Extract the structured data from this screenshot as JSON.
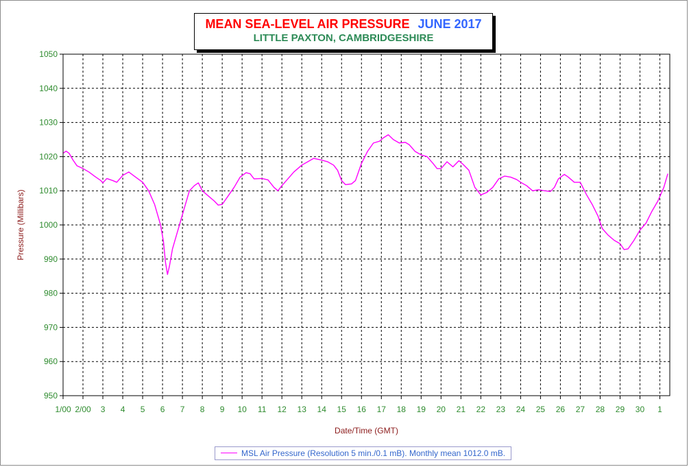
{
  "chart_data": {
    "type": "line",
    "title": "MEAN SEA-LEVEL AIR PRESSURE",
    "title_date": "JUNE 2017",
    "subtitle": "LITTLE PAXTON, CAMBRIDGESHIRE",
    "xlabel": "Date/Time (GMT)",
    "ylabel": "Pressure (Millibars)",
    "ylim": [
      950,
      1050
    ],
    "yticks": [
      950,
      960,
      970,
      980,
      990,
      1000,
      1010,
      1020,
      1030,
      1040,
      1050
    ],
    "xlim": [
      0,
      30.5
    ],
    "xticks": [
      {
        "x": 0,
        "label": "1/00"
      },
      {
        "x": 1,
        "label": "2/00"
      },
      {
        "x": 2,
        "label": "3"
      },
      {
        "x": 3,
        "label": "4"
      },
      {
        "x": 4,
        "label": "5"
      },
      {
        "x": 5,
        "label": "6"
      },
      {
        "x": 6,
        "label": "7"
      },
      {
        "x": 7,
        "label": "8"
      },
      {
        "x": 8,
        "label": "9"
      },
      {
        "x": 9,
        "label": "10"
      },
      {
        "x": 10,
        "label": "11"
      },
      {
        "x": 11,
        "label": "12"
      },
      {
        "x": 12,
        "label": "13"
      },
      {
        "x": 13,
        "label": "14"
      },
      {
        "x": 14,
        "label": "15"
      },
      {
        "x": 15,
        "label": "16"
      },
      {
        "x": 16,
        "label": "17"
      },
      {
        "x": 17,
        "label": "18"
      },
      {
        "x": 18,
        "label": "19"
      },
      {
        "x": 19,
        "label": "20"
      },
      {
        "x": 20,
        "label": "21"
      },
      {
        "x": 21,
        "label": "22"
      },
      {
        "x": 22,
        "label": "23"
      },
      {
        "x": 23,
        "label": "24"
      },
      {
        "x": 24,
        "label": "25"
      },
      {
        "x": 25,
        "label": "26"
      },
      {
        "x": 26,
        "label": "27"
      },
      {
        "x": 27,
        "label": "28"
      },
      {
        "x": 28,
        "label": "29"
      },
      {
        "x": 29,
        "label": "30"
      },
      {
        "x": 30,
        "label": "1"
      }
    ],
    "grid": true,
    "legend_position": "bottom",
    "series": [
      {
        "name": "MSL Air Pressure (Resolution 5 min./0.1 mB). Monthly mean 1012.0 mB.",
        "color": "#ff00ff",
        "points": [
          [
            0.0,
            1021.0
          ],
          [
            0.15,
            1021.6
          ],
          [
            0.3,
            1021.0
          ],
          [
            0.5,
            1019.0
          ],
          [
            0.7,
            1017.3
          ],
          [
            1.0,
            1016.5
          ],
          [
            1.3,
            1015.5
          ],
          [
            1.6,
            1014.2
          ],
          [
            1.9,
            1013.0
          ],
          [
            2.0,
            1012.3
          ],
          [
            2.2,
            1013.6
          ],
          [
            2.5,
            1013.0
          ],
          [
            2.7,
            1012.5
          ],
          [
            3.0,
            1014.5
          ],
          [
            3.3,
            1015.5
          ],
          [
            3.6,
            1014.2
          ],
          [
            4.0,
            1012.5
          ],
          [
            4.3,
            1010.0
          ],
          [
            4.6,
            1006.0
          ],
          [
            4.9,
            1000.0
          ],
          [
            5.05,
            995.0
          ],
          [
            5.15,
            989.0
          ],
          [
            5.25,
            985.5
          ],
          [
            5.35,
            988.0
          ],
          [
            5.5,
            993.0
          ],
          [
            5.7,
            997.0
          ],
          [
            5.9,
            1001.0
          ],
          [
            6.1,
            1005.0
          ],
          [
            6.35,
            1010.0
          ],
          [
            6.6,
            1011.5
          ],
          [
            6.8,
            1012.3
          ],
          [
            7.0,
            1010.0
          ],
          [
            7.3,
            1008.5
          ],
          [
            7.6,
            1007.0
          ],
          [
            7.8,
            1005.8
          ],
          [
            8.0,
            1006.0
          ],
          [
            8.3,
            1008.5
          ],
          [
            8.6,
            1011.0
          ],
          [
            8.9,
            1014.0
          ],
          [
            9.2,
            1015.3
          ],
          [
            9.4,
            1015.0
          ],
          [
            9.6,
            1013.5
          ],
          [
            10.0,
            1013.6
          ],
          [
            10.3,
            1013.2
          ],
          [
            10.6,
            1011.0
          ],
          [
            10.8,
            1010.0
          ],
          [
            11.0,
            1011.5
          ],
          [
            11.3,
            1013.5
          ],
          [
            11.6,
            1015.5
          ],
          [
            12.0,
            1017.5
          ],
          [
            12.3,
            1018.5
          ],
          [
            12.6,
            1019.5
          ],
          [
            13.0,
            1019.0
          ],
          [
            13.3,
            1018.5
          ],
          [
            13.6,
            1017.5
          ],
          [
            13.8,
            1016.0
          ],
          [
            14.0,
            1013.0
          ],
          [
            14.2,
            1011.8
          ],
          [
            14.5,
            1012.0
          ],
          [
            14.7,
            1013.0
          ],
          [
            15.0,
            1018.0
          ],
          [
            15.3,
            1021.5
          ],
          [
            15.6,
            1024.0
          ],
          [
            15.9,
            1024.5
          ],
          [
            16.1,
            1025.5
          ],
          [
            16.35,
            1026.4
          ],
          [
            16.6,
            1025.0
          ],
          [
            16.9,
            1024.0
          ],
          [
            17.2,
            1024.2
          ],
          [
            17.4,
            1023.5
          ],
          [
            17.7,
            1021.5
          ],
          [
            18.0,
            1020.5
          ],
          [
            18.3,
            1020.0
          ],
          [
            18.6,
            1018.0
          ],
          [
            18.8,
            1016.5
          ],
          [
            19.0,
            1016.5
          ],
          [
            19.3,
            1018.5
          ],
          [
            19.6,
            1017.0
          ],
          [
            19.9,
            1018.8
          ],
          [
            20.1,
            1017.8
          ],
          [
            20.4,
            1016.0
          ],
          [
            20.7,
            1011.0
          ],
          [
            21.0,
            1008.8
          ],
          [
            21.3,
            1009.5
          ],
          [
            21.6,
            1011.0
          ],
          [
            21.9,
            1013.5
          ],
          [
            22.2,
            1014.3
          ],
          [
            22.5,
            1014.0
          ],
          [
            22.8,
            1013.3
          ],
          [
            23.0,
            1012.5
          ],
          [
            23.3,
            1011.5
          ],
          [
            23.6,
            1010.0
          ],
          [
            23.9,
            1010.3
          ],
          [
            24.2,
            1010.0
          ],
          [
            24.5,
            1009.8
          ],
          [
            24.7,
            1011.0
          ],
          [
            24.9,
            1013.5
          ],
          [
            25.2,
            1014.8
          ],
          [
            25.4,
            1014.0
          ],
          [
            25.7,
            1012.5
          ],
          [
            26.0,
            1012.5
          ],
          [
            26.3,
            1009.0
          ],
          [
            26.6,
            1006.0
          ],
          [
            26.9,
            1002.5
          ],
          [
            27.1,
            999.0
          ],
          [
            27.4,
            997.0
          ],
          [
            27.7,
            995.5
          ],
          [
            28.0,
            994.5
          ],
          [
            28.2,
            992.8
          ],
          [
            28.4,
            993.0
          ],
          [
            28.7,
            995.5
          ],
          [
            29.0,
            998.5
          ],
          [
            29.3,
            1000.5
          ],
          [
            29.6,
            1004.0
          ],
          [
            29.9,
            1007.0
          ],
          [
            30.2,
            1011.0
          ],
          [
            30.4,
            1015.0
          ]
        ]
      }
    ]
  }
}
